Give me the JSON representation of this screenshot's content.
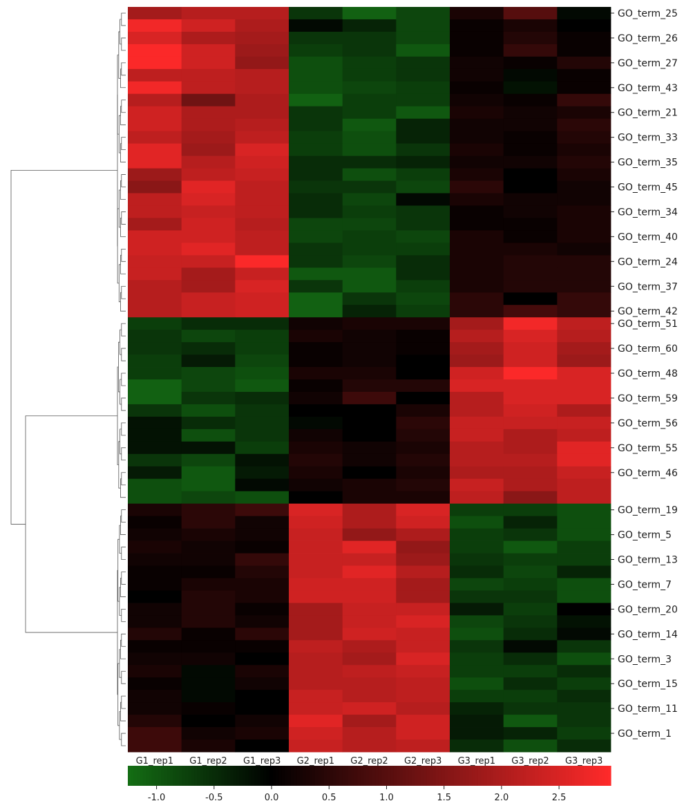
{
  "chart_data": {
    "type": "heatmap",
    "title": "",
    "xlabel": "",
    "ylabel": "",
    "columns": [
      "G1_rep1",
      "G1_rep2",
      "G1_rep3",
      "G2_rep1",
      "G2_rep2",
      "G2_rep3",
      "G3_rep1",
      "G3_rep2",
      "G3_rep3"
    ],
    "rows": [
      {
        "label": "GO_term_25",
        "values": [
          1.9,
          2.1,
          2.1,
          -0.6,
          -1.1,
          -0.8,
          0.3,
          1.0,
          -0.1
        ]
      },
      {
        "label": "",
        "values": [
          2.8,
          2.4,
          2.0,
          -0.1,
          -0.4,
          -0.8,
          0.1,
          0.3,
          0.0
        ]
      },
      {
        "label": "GO_term_26",
        "values": [
          2.5,
          2.0,
          1.9,
          -0.6,
          -0.6,
          -0.8,
          0.1,
          0.4,
          0.1
        ]
      },
      {
        "label": "",
        "values": [
          2.9,
          2.4,
          1.8,
          -0.7,
          -0.6,
          -1.0,
          0.1,
          0.6,
          0.1
        ]
      },
      {
        "label": "GO_term_27",
        "values": [
          2.9,
          2.4,
          1.7,
          -0.9,
          -0.7,
          -0.6,
          0.2,
          0.1,
          0.4
        ]
      },
      {
        "label": "",
        "values": [
          2.2,
          2.2,
          2.1,
          -0.9,
          -0.7,
          -0.6,
          0.2,
          -0.1,
          0.1
        ]
      },
      {
        "label": "GO_term_43",
        "values": [
          2.8,
          2.2,
          2.1,
          -0.9,
          -0.8,
          -0.7,
          0.1,
          -0.2,
          0.1
        ]
      },
      {
        "label": "",
        "values": [
          2.1,
          1.3,
          2.0,
          -1.1,
          -0.7,
          -0.7,
          0.2,
          0.1,
          0.6
        ]
      },
      {
        "label": "GO_term_21",
        "values": [
          2.4,
          2.0,
          2.0,
          -0.6,
          -0.7,
          -1.0,
          0.3,
          0.2,
          0.3
        ]
      },
      {
        "label": "",
        "values": [
          2.4,
          2.0,
          2.1,
          -0.6,
          -1.0,
          -0.4,
          0.2,
          0.2,
          0.5
        ]
      },
      {
        "label": "GO_term_33",
        "values": [
          2.2,
          1.9,
          2.2,
          -0.7,
          -0.9,
          -0.4,
          0.2,
          0.1,
          0.4
        ]
      },
      {
        "label": "",
        "values": [
          2.6,
          1.8,
          2.5,
          -0.7,
          -0.9,
          -0.6,
          0.3,
          0.1,
          0.3
        ]
      },
      {
        "label": "GO_term_35",
        "values": [
          2.6,
          2.1,
          2.4,
          -0.5,
          -0.5,
          -0.4,
          0.2,
          0.2,
          0.4
        ]
      },
      {
        "label": "",
        "values": [
          1.8,
          2.2,
          2.3,
          -0.5,
          -0.9,
          -0.7,
          0.3,
          0.0,
          0.3
        ]
      },
      {
        "label": "GO_term_45",
        "values": [
          1.6,
          2.6,
          2.2,
          -0.6,
          -0.6,
          -0.8,
          0.5,
          0.0,
          0.2
        ]
      },
      {
        "label": "",
        "values": [
          2.2,
          2.5,
          2.2,
          -0.5,
          -0.8,
          -0.1,
          0.3,
          0.2,
          0.2
        ]
      },
      {
        "label": "GO_term_34",
        "values": [
          2.2,
          2.3,
          2.2,
          -0.5,
          -0.7,
          -0.6,
          0.1,
          0.2,
          0.3
        ]
      },
      {
        "label": "",
        "values": [
          1.9,
          2.4,
          2.1,
          -0.8,
          -0.8,
          -0.6,
          0.1,
          0.1,
          0.3
        ]
      },
      {
        "label": "GO_term_40",
        "values": [
          2.4,
          2.4,
          2.2,
          -0.8,
          -0.7,
          -0.8,
          0.3,
          0.1,
          0.3
        ]
      },
      {
        "label": "",
        "values": [
          2.4,
          2.6,
          2.2,
          -0.6,
          -0.7,
          -0.7,
          0.3,
          0.3,
          0.2
        ]
      },
      {
        "label": "GO_term_24",
        "values": [
          2.3,
          2.3,
          2.9,
          -0.6,
          -0.8,
          -0.5,
          0.3,
          0.4,
          0.4
        ]
      },
      {
        "label": "",
        "values": [
          2.3,
          1.9,
          2.3,
          -1.0,
          -1.0,
          -0.5,
          0.3,
          0.4,
          0.4
        ]
      },
      {
        "label": "GO_term_37",
        "values": [
          2.1,
          1.9,
          2.5,
          -0.6,
          -1.0,
          -0.7,
          0.3,
          0.4,
          0.4
        ]
      },
      {
        "label": "",
        "values": [
          2.1,
          2.3,
          2.4,
          -1.1,
          -0.6,
          -0.8,
          0.5,
          0.0,
          0.6
        ]
      },
      {
        "label": "GO_term_42",
        "values": [
          2.1,
          2.3,
          2.4,
          -1.1,
          -0.4,
          -0.7,
          0.5,
          0.8,
          0.6
        ]
      },
      {
        "label": "GO_term_51",
        "values": [
          -0.7,
          -0.5,
          -0.5,
          0.2,
          0.3,
          0.3,
          1.9,
          2.8,
          2.2
        ]
      },
      {
        "label": "",
        "values": [
          -0.6,
          -0.8,
          -0.7,
          0.3,
          0.2,
          0.1,
          2.1,
          2.5,
          2.1
        ]
      },
      {
        "label": "GO_term_60",
        "values": [
          -0.6,
          -0.5,
          -0.7,
          0.1,
          0.2,
          0.1,
          1.9,
          2.4,
          1.9
        ]
      },
      {
        "label": "",
        "values": [
          -0.7,
          -0.3,
          -0.8,
          0.1,
          0.2,
          0.0,
          1.8,
          2.4,
          1.8
        ]
      },
      {
        "label": "GO_term_48",
        "values": [
          -0.7,
          -0.8,
          -0.9,
          0.3,
          0.3,
          0.0,
          2.4,
          2.9,
          2.5
        ]
      },
      {
        "label": "",
        "values": [
          -1.1,
          -0.8,
          -1.0,
          0.1,
          0.4,
          0.4,
          2.5,
          2.5,
          2.5
        ]
      },
      {
        "label": "GO_term_59",
        "values": [
          -1.1,
          -0.6,
          -0.5,
          0.2,
          0.7,
          0.0,
          2.1,
          2.5,
          2.5
        ]
      },
      {
        "label": "",
        "values": [
          -0.6,
          -0.9,
          -0.6,
          0.0,
          0.0,
          0.3,
          2.1,
          2.4,
          2.0
        ]
      },
      {
        "label": "GO_term_56",
        "values": [
          -0.2,
          -0.5,
          -0.6,
          -0.1,
          0.0,
          0.5,
          2.3,
          2.3,
          2.3
        ]
      },
      {
        "label": "",
        "values": [
          -0.2,
          -0.9,
          -0.6,
          0.2,
          0.0,
          0.4,
          2.3,
          2.0,
          2.2
        ]
      },
      {
        "label": "GO_term_55",
        "values": [
          -0.2,
          -0.2,
          -0.7,
          0.3,
          0.2,
          0.3,
          2.1,
          2.0,
          2.6
        ]
      },
      {
        "label": "",
        "values": [
          -0.6,
          -0.8,
          -0.2,
          0.4,
          0.2,
          0.4,
          2.1,
          2.1,
          2.6
        ]
      },
      {
        "label": "GO_term_46",
        "values": [
          -0.3,
          -1.0,
          -0.3,
          0.3,
          0.0,
          0.3,
          2.0,
          2.0,
          2.3
        ]
      },
      {
        "label": "",
        "values": [
          -0.9,
          -1.0,
          -0.1,
          0.2,
          0.3,
          0.4,
          2.3,
          2.0,
          2.2
        ]
      },
      {
        "label": "",
        "values": [
          -0.9,
          -0.8,
          -0.9,
          0.0,
          0.3,
          0.3,
          2.2,
          1.6,
          2.2
        ]
      },
      {
        "label": "GO_term_19",
        "values": [
          0.3,
          0.5,
          0.7,
          2.5,
          2.0,
          2.5,
          -0.7,
          -0.7,
          -0.9
        ]
      },
      {
        "label": "",
        "values": [
          0.1,
          0.5,
          0.2,
          2.4,
          2.0,
          2.4,
          -0.9,
          -0.4,
          -0.9
        ]
      },
      {
        "label": "GO_term_5",
        "values": [
          0.2,
          0.3,
          0.2,
          2.3,
          1.7,
          2.0,
          -0.7,
          -0.6,
          -0.9
        ]
      },
      {
        "label": "",
        "values": [
          0.3,
          0.2,
          0.1,
          2.3,
          2.6,
          1.7,
          -0.7,
          -1.0,
          -0.7
        ]
      },
      {
        "label": "GO_term_13",
        "values": [
          0.2,
          0.2,
          0.6,
          2.3,
          2.3,
          1.8,
          -0.6,
          -0.7,
          -0.7
        ]
      },
      {
        "label": "",
        "values": [
          0.1,
          0.1,
          0.4,
          2.3,
          2.6,
          2.1,
          -0.5,
          -0.8,
          -0.4
        ]
      },
      {
        "label": "GO_term_7",
        "values": [
          0.1,
          0.3,
          0.3,
          2.4,
          2.4,
          1.9,
          -0.8,
          -0.7,
          -0.9
        ]
      },
      {
        "label": "",
        "values": [
          0.0,
          0.4,
          0.3,
          2.4,
          2.4,
          1.9,
          -0.6,
          -0.6,
          -0.9
        ]
      },
      {
        "label": "GO_term_20",
        "values": [
          0.2,
          0.4,
          0.1,
          1.9,
          2.3,
          2.3,
          -0.3,
          -0.7,
          0.0
        ]
      },
      {
        "label": "",
        "values": [
          0.2,
          0.4,
          0.2,
          1.9,
          2.3,
          2.5,
          -0.8,
          -0.6,
          -0.2
        ]
      },
      {
        "label": "GO_term_14",
        "values": [
          0.4,
          0.1,
          0.5,
          1.9,
          2.4,
          2.3,
          -0.9,
          -0.5,
          -0.1
        ]
      },
      {
        "label": "",
        "values": [
          0.1,
          0.1,
          0.1,
          2.2,
          2.0,
          2.3,
          -0.6,
          -0.1,
          -0.6
        ]
      },
      {
        "label": "GO_term_3",
        "values": [
          0.2,
          0.2,
          0.0,
          2.1,
          1.9,
          2.5,
          -0.7,
          -0.5,
          -0.9
        ]
      },
      {
        "label": "",
        "values": [
          0.3,
          -0.1,
          0.3,
          2.1,
          2.2,
          2.3,
          -0.7,
          -0.7,
          -0.5
        ]
      },
      {
        "label": "GO_term_15",
        "values": [
          0.1,
          -0.1,
          0.2,
          2.1,
          2.1,
          2.2,
          -0.9,
          -0.5,
          -0.7
        ]
      },
      {
        "label": "",
        "values": [
          0.2,
          -0.1,
          0.0,
          2.3,
          2.1,
          2.2,
          -0.7,
          -0.7,
          -0.5
        ]
      },
      {
        "label": "GO_term_11",
        "values": [
          0.2,
          0.1,
          0.0,
          2.3,
          2.4,
          2.1,
          -0.4,
          -0.6,
          -0.6
        ]
      },
      {
        "label": "",
        "values": [
          0.4,
          0.0,
          0.2,
          2.6,
          1.9,
          2.4,
          -0.3,
          -1.0,
          -0.6
        ]
      },
      {
        "label": "GO_term_1",
        "values": [
          0.7,
          0.2,
          0.3,
          2.4,
          2.1,
          2.4,
          -0.3,
          -0.4,
          -0.7
        ]
      },
      {
        "label": "",
        "values": [
          0.7,
          0.3,
          0.0,
          2.3,
          2.1,
          2.2,
          -0.5,
          -0.9,
          -0.5
        ]
      }
    ],
    "colorbar": {
      "min": -1.25,
      "max": 2.95,
      "ticks": [
        -1.0,
        -0.5,
        0.0,
        0.5,
        1.0,
        1.5,
        2.0,
        2.5
      ],
      "tick_labels": [
        "-1.0",
        "-0.5",
        "0.0",
        "0.5",
        "1.0",
        "1.5",
        "2.0",
        "2.5"
      ],
      "colors": {
        "low": "#146e14",
        "mid": "#000000",
        "high": "#ff2a2a"
      }
    },
    "dendrogram": {
      "side": "left",
      "clusters": [
        "top (GO_term_25 … GO_term_42)",
        "middle (GO_term_51 … GO_term_46)",
        "bottom (GO_term_19 … GO_term_1)"
      ]
    },
    "grid": false,
    "legend": "bottom"
  }
}
